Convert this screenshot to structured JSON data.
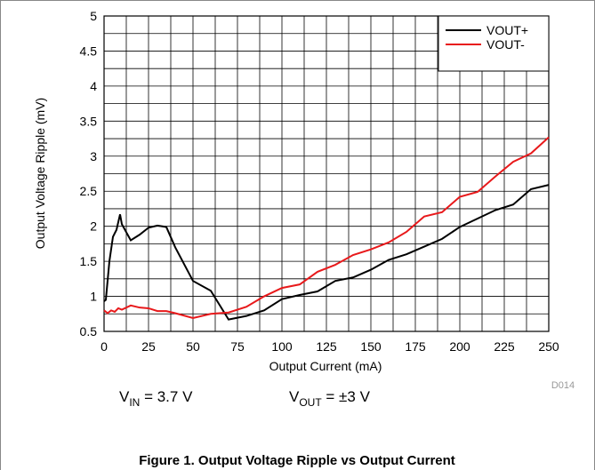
{
  "chart_data": {
    "type": "line",
    "xlabel": "Output Current (mA)",
    "ylabel": "Output Voltage Ripple (mV)",
    "xlim": [
      0,
      250
    ],
    "ylim": [
      0.5,
      5
    ],
    "xticks": [
      0,
      25,
      50,
      75,
      100,
      125,
      150,
      175,
      200,
      225,
      250
    ],
    "yticks": [
      0.5,
      1,
      1.5,
      2,
      2.5,
      3,
      3.5,
      4,
      4.5,
      5
    ],
    "x_minor_grid": [
      12.5,
      37.5,
      62.5,
      87.5,
      112.5,
      137.5,
      162.5,
      187.5,
      212.5,
      237.5
    ],
    "y_minor_grid": [
      0.75,
      1.25,
      1.75,
      2.25,
      2.75,
      3.25,
      3.75,
      4.25,
      4.75
    ],
    "grid": true,
    "legend_position": "upper right",
    "series": [
      {
        "name": "VOUT+",
        "color": "#000000",
        "x": [
          0,
          1,
          3,
          5,
          7,
          9,
          10,
          15,
          20,
          25,
          30,
          35,
          40,
          50,
          60,
          70,
          80,
          90,
          100,
          110,
          120,
          130,
          140,
          150,
          160,
          170,
          180,
          190,
          200,
          210,
          220,
          230,
          240,
          250
        ],
        "values": [
          0.93,
          0.95,
          1.5,
          1.85,
          1.95,
          2.17,
          2.03,
          1.8,
          1.88,
          1.98,
          2.01,
          1.99,
          1.7,
          1.22,
          1.08,
          0.67,
          0.72,
          0.8,
          0.96,
          1.02,
          1.07,
          1.22,
          1.27,
          1.38,
          1.52,
          1.6,
          1.71,
          1.82,
          1.99,
          2.11,
          2.23,
          2.31,
          2.53,
          2.59
        ]
      },
      {
        "name": "VOUT-",
        "color": "#e8191b",
        "x": [
          0,
          2,
          4,
          6,
          8,
          10,
          15,
          20,
          25,
          30,
          35,
          40,
          50,
          60,
          70,
          80,
          90,
          100,
          110,
          120,
          130,
          140,
          150,
          160,
          170,
          180,
          190,
          200,
          210,
          220,
          230,
          240,
          250
        ],
        "values": [
          0.8,
          0.76,
          0.8,
          0.78,
          0.83,
          0.81,
          0.87,
          0.84,
          0.83,
          0.79,
          0.79,
          0.76,
          0.69,
          0.75,
          0.77,
          0.85,
          1.0,
          1.12,
          1.17,
          1.35,
          1.45,
          1.59,
          1.67,
          1.77,
          1.92,
          2.14,
          2.2,
          2.42,
          2.49,
          2.71,
          2.92,
          3.04,
          3.27
        ]
      }
    ],
    "annotations": [
      "D014"
    ],
    "conditions": [
      {
        "main": "V",
        "sub": "IN",
        "rest": " = 3.7 V"
      },
      {
        "main": "V",
        "sub": "OUT",
        "rest": " = ±3 V"
      }
    ],
    "caption": "Figure 1. Output Voltage Ripple vs Output Current"
  }
}
